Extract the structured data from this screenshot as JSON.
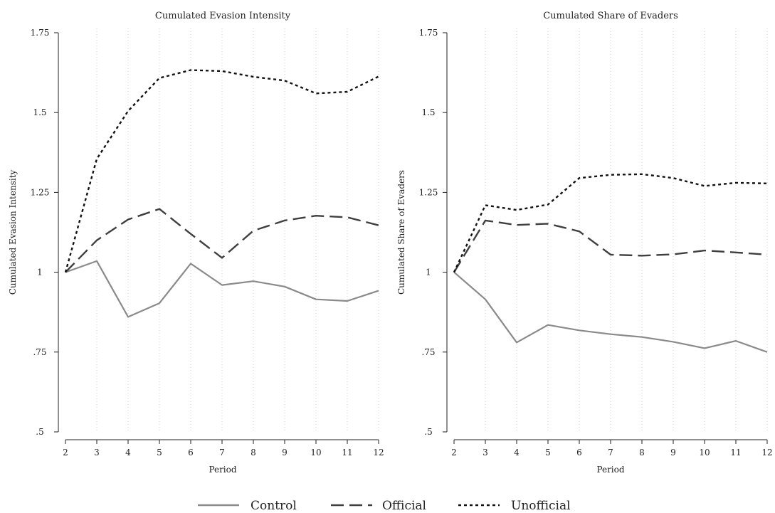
{
  "colors": {
    "Control": "#8a8a8a",
    "Official": "#3f3f3f",
    "Unofficial": "#111111"
  },
  "legend": {
    "placement": "bottom-center",
    "items": [
      "Control",
      "Official",
      "Unofficial"
    ]
  },
  "chart_data": [
    {
      "type": "line",
      "title": "Cumulated Evasion Intensity",
      "xlabel": "Period",
      "ylabel": "Cumulated Evasion Intensity",
      "x": [
        2,
        3,
        4,
        5,
        6,
        7,
        8,
        9,
        10,
        11,
        12
      ],
      "x_tick_labels": [
        "2",
        "3",
        "4",
        "5",
        "6",
        "7",
        "8",
        "9",
        "10",
        "11",
        "12"
      ],
      "ylim": [
        0.5,
        1.75
      ],
      "y_ticks": [
        0.5,
        0.75,
        1,
        1.25,
        1.5,
        1.75
      ],
      "y_tick_labels": [
        ".5",
        ".75",
        "1",
        "1.25",
        "1.5",
        "1.75"
      ],
      "grid": "vertical-dotted",
      "series": [
        {
          "name": "Control",
          "style": "solid",
          "values": [
            1.0,
            1.035,
            0.86,
            0.903,
            1.027,
            0.96,
            0.972,
            0.955,
            0.915,
            0.91,
            0.942
          ]
        },
        {
          "name": "Official",
          "style": "dashed",
          "values": [
            1.0,
            1.1,
            1.165,
            1.198,
            1.12,
            1.045,
            1.13,
            1.162,
            1.177,
            1.172,
            1.147
          ]
        },
        {
          "name": "Unofficial",
          "style": "dotted",
          "values": [
            1.0,
            1.355,
            1.505,
            1.608,
            1.633,
            1.63,
            1.612,
            1.6,
            1.56,
            1.565,
            1.613
          ]
        }
      ]
    },
    {
      "type": "line",
      "title": "Cumulated Share of Evaders",
      "xlabel": "Period",
      "ylabel": "Cumulated Share of Evaders",
      "x": [
        2,
        3,
        4,
        5,
        6,
        7,
        8,
        9,
        10,
        11,
        12
      ],
      "x_tick_labels": [
        "2",
        "3",
        "4",
        "5",
        "6",
        "7",
        "8",
        "9",
        "10",
        "11",
        "12"
      ],
      "ylim": [
        0.5,
        1.75
      ],
      "y_ticks": [
        0.5,
        0.75,
        1,
        1.25,
        1.5,
        1.75
      ],
      "y_tick_labels": [
        ".5",
        ".75",
        "1",
        "1.25",
        "1.5",
        "1.75"
      ],
      "grid": "vertical-dotted",
      "series": [
        {
          "name": "Control",
          "style": "solid",
          "values": [
            1.0,
            0.915,
            0.78,
            0.835,
            0.818,
            0.806,
            0.797,
            0.782,
            0.762,
            0.785,
            0.75
          ]
        },
        {
          "name": "Official",
          "style": "dashed",
          "values": [
            1.0,
            1.162,
            1.148,
            1.152,
            1.128,
            1.055,
            1.052,
            1.056,
            1.068,
            1.062,
            1.055
          ]
        },
        {
          "name": "Unofficial",
          "style": "dotted",
          "values": [
            1.0,
            1.21,
            1.195,
            1.212,
            1.295,
            1.305,
            1.307,
            1.295,
            1.27,
            1.28,
            1.278
          ]
        }
      ]
    }
  ]
}
